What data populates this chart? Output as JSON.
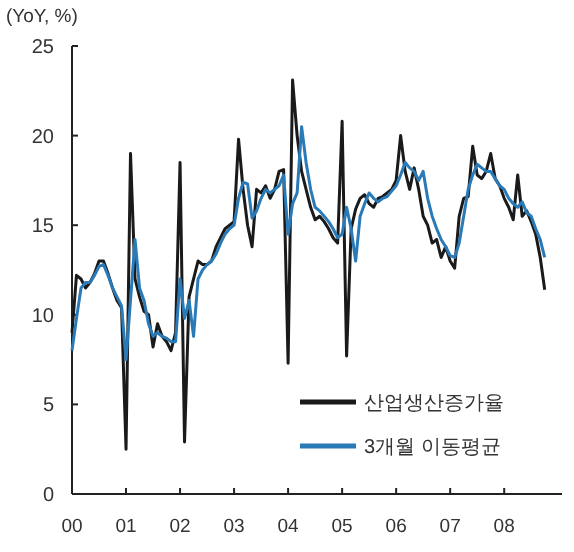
{
  "chart_data": {
    "type": "line",
    "ylabel": "(YoY, %)",
    "xlim": [
      2000,
      2009.07
    ],
    "xticks": [
      {
        "value": 2000,
        "label": "00"
      },
      {
        "value": 2001,
        "label": "01"
      },
      {
        "value": 2002,
        "label": "02"
      },
      {
        "value": 2003,
        "label": "03"
      },
      {
        "value": 2004,
        "label": "04"
      },
      {
        "value": 2005,
        "label": "05"
      },
      {
        "value": 2006,
        "label": "06"
      },
      {
        "value": 2007,
        "label": "07"
      },
      {
        "value": 2008,
        "label": "08"
      }
    ],
    "ylim": [
      0,
      25
    ],
    "yticks": [
      0,
      5,
      10,
      15,
      20,
      25
    ],
    "grid": false,
    "legend": "bottom right",
    "line_style": "solid",
    "marker": "none",
    "x": [
      2000,
      2000.083,
      2000.167,
      2000.25,
      2000.333,
      2000.417,
      2000.5,
      2000.583,
      2000.667,
      2000.75,
      2000.833,
      2000.917,
      2001,
      2001.083,
      2001.167,
      2001.25,
      2001.333,
      2001.417,
      2001.5,
      2001.583,
      2001.667,
      2001.75,
      2001.833,
      2001.917,
      2002,
      2002.083,
      2002.167,
      2002.25,
      2002.333,
      2002.417,
      2002.5,
      2002.583,
      2002.667,
      2002.75,
      2002.833,
      2002.917,
      2003,
      2003.083,
      2003.167,
      2003.25,
      2003.333,
      2003.417,
      2003.5,
      2003.583,
      2003.667,
      2003.75,
      2003.833,
      2003.917,
      2004,
      2004.083,
      2004.167,
      2004.25,
      2004.333,
      2004.417,
      2004.5,
      2004.583,
      2004.667,
      2004.75,
      2004.833,
      2004.917,
      2005,
      2005.083,
      2005.167,
      2005.25,
      2005.333,
      2005.417,
      2005.5,
      2005.583,
      2005.667,
      2005.75,
      2005.833,
      2005.917,
      2006,
      2006.083,
      2006.167,
      2006.25,
      2006.333,
      2006.417,
      2006.5,
      2006.583,
      2006.667,
      2006.75,
      2006.833,
      2006.917,
      2007,
      2007.083,
      2007.167,
      2007.25,
      2007.333,
      2007.417,
      2007.5,
      2007.583,
      2007.667,
      2007.75,
      2007.833,
      2007.917,
      2008,
      2008.083,
      2008.167,
      2008.25,
      2008.333,
      2008.417,
      2008.5,
      2008.583,
      2008.667,
      2008.75
    ],
    "series": [
      {
        "name": "산업생산증가율",
        "color": "#1a1a1a",
        "values": [
          9.0,
          12.2,
          12.0,
          11.5,
          11.8,
          12.3,
          13.0,
          13.0,
          12.3,
          11.5,
          10.8,
          10.4,
          2.5,
          19.0,
          12.0,
          11.0,
          10.2,
          10.0,
          8.2,
          9.5,
          8.8,
          8.5,
          8.0,
          9.0,
          18.5,
          2.9,
          11.0,
          12.0,
          13.0,
          12.8,
          12.8,
          13.0,
          13.8,
          14.3,
          14.8,
          15.0,
          15.2,
          19.8,
          17.0,
          15.0,
          13.8,
          17.0,
          16.8,
          17.2,
          16.5,
          17.0,
          18.0,
          18.1,
          7.3,
          23.1,
          20.0,
          18.0,
          17.0,
          16.0,
          15.3,
          15.5,
          15.2,
          14.8,
          14.3,
          14.0,
          20.8,
          7.7,
          14.8,
          15.9,
          16.5,
          16.7,
          16.2,
          16.0,
          16.5,
          16.6,
          16.8,
          17.0,
          17.5,
          20.0,
          18.0,
          17.0,
          18.2,
          17.0,
          15.5,
          15.0,
          14.0,
          14.2,
          13.2,
          13.8,
          13.0,
          12.6,
          15.5,
          16.5,
          16.6,
          19.4,
          17.8,
          17.6,
          18.0,
          19.0,
          17.6,
          17.2,
          16.5,
          16.0,
          15.3,
          17.8,
          15.5,
          15.8,
          15.2,
          14.5,
          13.2,
          11.4
        ]
      },
      {
        "name": "3개월 이동평균",
        "color": "#2a7ab8",
        "values": [
          8.0,
          9.8,
          11.5,
          11.8,
          11.8,
          12.2,
          12.7,
          12.8,
          12.2,
          11.5,
          11.0,
          10.5,
          7.5,
          10.8,
          14.2,
          11.5,
          10.8,
          9.5,
          8.8,
          9.0,
          8.8,
          8.7,
          8.5,
          8.5,
          12.0,
          9.8,
          10.8,
          8.8,
          12.0,
          12.5,
          12.8,
          13.0,
          13.4,
          14.0,
          14.5,
          14.8,
          15.0,
          16.5,
          17.4,
          17.3,
          15.4,
          15.8,
          16.5,
          17.0,
          16.8,
          17.0,
          17.2,
          17.8,
          14.5,
          16.2,
          16.8,
          20.5,
          18.5,
          17.0,
          16.0,
          15.8,
          15.5,
          15.2,
          14.8,
          14.3,
          14.5,
          16.0,
          14.8,
          13.0,
          15.5,
          16.2,
          16.8,
          16.5,
          16.3,
          16.5,
          16.6,
          16.9,
          17.2,
          17.8,
          18.5,
          18.2,
          18.0,
          17.5,
          18.0,
          16.5,
          15.5,
          14.8,
          14.2,
          13.8,
          13.3,
          13.2,
          14.0,
          15.5,
          17.0,
          17.8,
          18.4,
          18.2,
          18.0,
          18.0,
          17.6,
          17.2,
          17.0,
          16.5,
          16.2,
          16.0,
          16.3,
          15.7,
          15.5,
          14.8,
          14.2,
          13.2
        ]
      }
    ]
  }
}
